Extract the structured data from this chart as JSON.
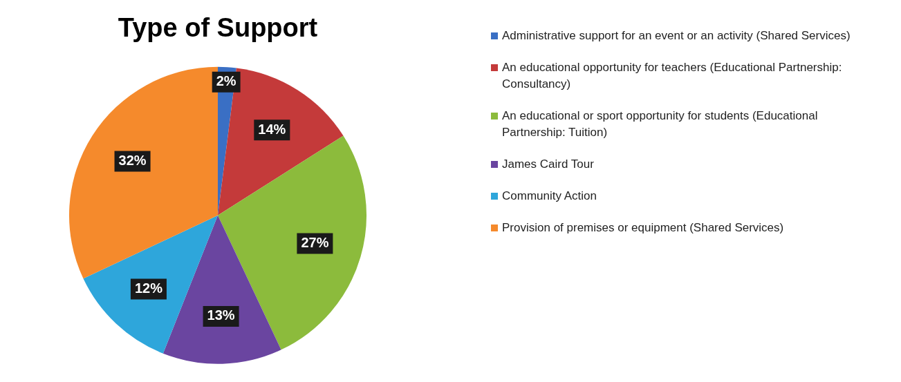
{
  "chart_data": {
    "type": "pie",
    "title": "Type of Support",
    "categories": [
      "Administrative support for an event or an activity (Shared Services)",
      "An educational opportunity for teachers (Educational Partnership: Consultancy)",
      "An educational or sport opportunity for students (Educational Partnership: Tuition)",
      "James Caird Tour",
      "Community Action",
      "Provision of premises or equipment (Shared Services)"
    ],
    "values": [
      2,
      14,
      27,
      13,
      12,
      32
    ],
    "colors": [
      "#3a6fc4",
      "#c43a3a",
      "#8cbb3c",
      "#6a45a0",
      "#2ea6db",
      "#f58a2c"
    ],
    "value_labels": [
      "2%",
      "14%",
      "27%",
      "13%",
      "12%",
      "32%"
    ],
    "legend": "right"
  }
}
